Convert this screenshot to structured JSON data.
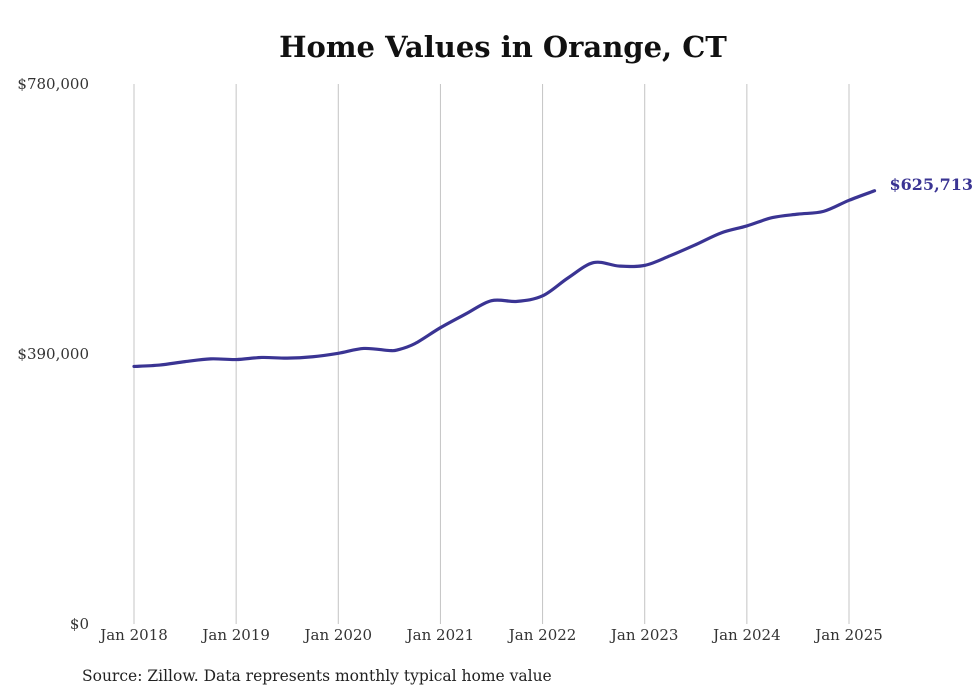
{
  "chart_data": {
    "type": "line",
    "title": "Home Values in Orange, CT",
    "source": "Source: Zillow. Data represents monthly typical home value",
    "xlabel": "",
    "ylabel": "",
    "ylim": [
      0,
      780000
    ],
    "y_ticks": [
      {
        "value": 0,
        "label": "$0"
      },
      {
        "value": 390000,
        "label": "$390,000"
      },
      {
        "value": 780000,
        "label": "$780,000"
      }
    ],
    "x_ticks": [
      {
        "value": "2018-01",
        "label": "Jan 2018"
      },
      {
        "value": "2019-01",
        "label": "Jan 2019"
      },
      {
        "value": "2020-01",
        "label": "Jan 2020"
      },
      {
        "value": "2021-01",
        "label": "Jan 2021"
      },
      {
        "value": "2022-01",
        "label": "Jan 2022"
      },
      {
        "value": "2023-01",
        "label": "Jan 2023"
      },
      {
        "value": "2024-01",
        "label": "Jan 2024"
      },
      {
        "value": "2025-01",
        "label": "Jan 2025"
      }
    ],
    "grid": {
      "vertical": true,
      "horizontal": false
    },
    "series": [
      {
        "color": "#3a3493",
        "end_label": "$625,713",
        "points": [
          {
            "x": "2018-01",
            "y": 372000
          },
          {
            "x": "2018-04",
            "y": 374000
          },
          {
            "x": "2018-07",
            "y": 379000
          },
          {
            "x": "2018-10",
            "y": 383000
          },
          {
            "x": "2019-01",
            "y": 382000
          },
          {
            "x": "2019-04",
            "y": 385000
          },
          {
            "x": "2019-07",
            "y": 384000
          },
          {
            "x": "2019-10",
            "y": 386000
          },
          {
            "x": "2020-01",
            "y": 391000
          },
          {
            "x": "2020-04",
            "y": 398000
          },
          {
            "x": "2020-07",
            "y": 395000
          },
          {
            "x": "2020-08",
            "y": 396000
          },
          {
            "x": "2020-10",
            "y": 405000
          },
          {
            "x": "2021-01",
            "y": 428000
          },
          {
            "x": "2021-04",
            "y": 448000
          },
          {
            "x": "2021-07",
            "y": 467000
          },
          {
            "x": "2021-10",
            "y": 466000
          },
          {
            "x": "2022-01",
            "y": 474000
          },
          {
            "x": "2022-04",
            "y": 500000
          },
          {
            "x": "2022-07",
            "y": 522000
          },
          {
            "x": "2022-10",
            "y": 517000
          },
          {
            "x": "2023-01",
            "y": 518000
          },
          {
            "x": "2023-04",
            "y": 532000
          },
          {
            "x": "2023-07",
            "y": 548000
          },
          {
            "x": "2023-10",
            "y": 565000
          },
          {
            "x": "2024-01",
            "y": 575000
          },
          {
            "x": "2024-04",
            "y": 587000
          },
          {
            "x": "2024-07",
            "y": 592000
          },
          {
            "x": "2024-10",
            "y": 596000
          },
          {
            "x": "2025-01",
            "y": 612000
          },
          {
            "x": "2025-04",
            "y": 625713
          }
        ]
      }
    ]
  }
}
